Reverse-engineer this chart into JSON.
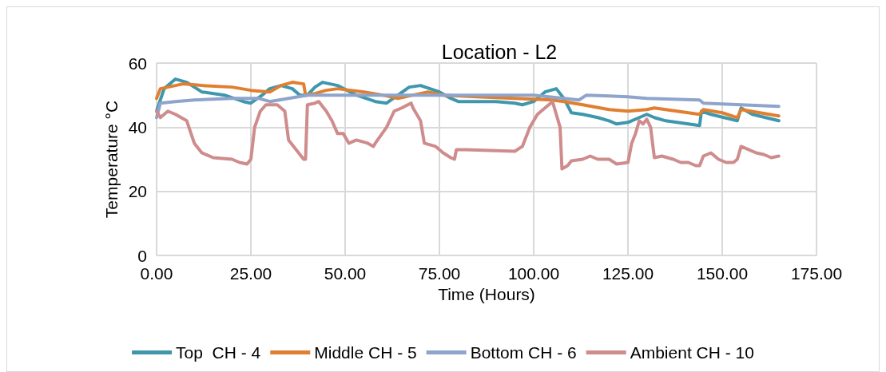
{
  "chart_data": {
    "type": "line",
    "title": "Location - L2",
    "xlabel": "Time (Hours)",
    "ylabel": "Temperature °C",
    "xlim": [
      0,
      175
    ],
    "xticks": [
      {
        "value": 0,
        "label": "0.00"
      },
      {
        "value": 25,
        "label": "25.00"
      },
      {
        "value": 50,
        "label": "50.00"
      },
      {
        "value": 75,
        "label": "75.00"
      },
      {
        "value": 100,
        "label": "100.00"
      },
      {
        "value": 125,
        "label": "125.00"
      },
      {
        "value": 150,
        "label": "150.00"
      },
      {
        "value": 175,
        "label": "175.00"
      }
    ],
    "ylim": [
      0,
      60
    ],
    "yticks": [
      0,
      20,
      40,
      60
    ],
    "grid": true,
    "legend": "bottom",
    "marker": "none",
    "line_style": "solid",
    "series": [
      {
        "name": "Top  CH - 4",
        "color": "#3f97ad",
        "x": [
          0,
          2,
          5,
          8,
          12,
          18,
          23,
          25,
          28,
          30,
          33,
          36,
          38,
          40,
          42,
          44,
          48,
          53,
          58,
          61,
          64,
          67,
          70,
          75,
          78,
          80,
          90,
          95,
          97,
          100,
          103,
          106,
          108,
          110,
          113,
          117,
          120,
          122,
          125,
          128,
          130,
          132,
          135,
          144,
          144.5,
          147,
          154,
          155,
          158,
          165
        ],
        "values": [
          45,
          52,
          55,
          54,
          51,
          50,
          48,
          47.5,
          50,
          52,
          53,
          52,
          50,
          50,
          52.5,
          54,
          53,
          50,
          48,
          47.5,
          50,
          52.5,
          53,
          51,
          49,
          48,
          48,
          47.5,
          47,
          48,
          51,
          52,
          49,
          44.5,
          44,
          43,
          42,
          41,
          41.5,
          43,
          44,
          43,
          42,
          40.5,
          45,
          44,
          42,
          46,
          44,
          42
        ]
      },
      {
        "name": "Middle CH - 5",
        "color": "#e07f2f",
        "x": [
          0,
          1,
          3,
          7,
          12,
          20,
          25,
          30,
          33,
          36,
          39,
          39.5,
          42,
          45,
          48,
          55,
          60,
          64,
          68,
          72,
          76,
          85,
          95,
          105,
          108,
          113,
          120,
          125,
          130,
          132,
          138,
          144,
          145,
          150,
          154,
          155,
          160,
          165
        ],
        "values": [
          49,
          52,
          52.5,
          53.5,
          53,
          52.5,
          51.5,
          51,
          53,
          54,
          53.5,
          50,
          50.5,
          51.5,
          52,
          51,
          50,
          49,
          50,
          51,
          50,
          49.5,
          49,
          48.5,
          48,
          47,
          45.5,
          45,
          45.5,
          46,
          45,
          44,
          45.5,
          44.5,
          43,
          45.5,
          44.5,
          43.5
        ]
      },
      {
        "name": "Bottom CH - 6",
        "color": "#8ea4cb",
        "x": [
          0,
          1,
          5,
          10,
          20,
          27,
          30,
          35,
          40,
          50,
          70,
          100,
          104,
          108,
          112,
          114,
          125,
          130,
          144,
          145,
          155,
          165
        ],
        "values": [
          43,
          47.5,
          48,
          48.5,
          49,
          49,
          48,
          49,
          50,
          50,
          50,
          50,
          49.5,
          49,
          48.5,
          50,
          49.5,
          49,
          48.5,
          47.5,
          47,
          46.5
        ]
      },
      {
        "name": "Ambient CH - 10",
        "color": "#cf8c8c",
        "x": [
          0,
          1,
          3,
          5,
          8,
          10,
          12,
          15,
          20,
          22,
          24,
          25,
          26,
          27.5,
          29,
          32,
          34,
          35,
          37,
          39,
          39.5,
          40,
          42,
          43,
          45,
          46.5,
          48,
          49.5,
          51,
          53,
          56,
          57.5,
          58,
          61,
          63,
          65,
          67.5,
          68,
          70,
          71,
          74,
          76,
          78,
          79,
          79.5,
          82,
          95,
          97,
          99,
          101,
          104,
          105,
          107,
          107.5,
          109,
          110,
          113,
          115,
          117,
          120,
          122,
          125,
          126,
          127,
          128,
          129,
          130,
          131,
          132,
          134,
          137,
          139,
          141,
          143,
          144,
          145,
          147,
          149,
          151,
          153,
          154,
          155,
          157,
          159,
          161,
          163,
          165
        ],
        "values": [
          45,
          43,
          45,
          44,
          42,
          35,
          32,
          30.5,
          30,
          29,
          28.5,
          30,
          40,
          45,
          47,
          47,
          45,
          36,
          33,
          30,
          30,
          47,
          47.5,
          48,
          45,
          42,
          38,
          38,
          35,
          36,
          35,
          34,
          35,
          40,
          45,
          46,
          47.5,
          46,
          42,
          35,
          34,
          32,
          30.5,
          30,
          33,
          33,
          32.5,
          34,
          40,
          44,
          47,
          48,
          40,
          27,
          28,
          29.5,
          30,
          31,
          30,
          30,
          28.5,
          29,
          35,
          38,
          42,
          41,
          42.5,
          40,
          30.5,
          31,
          30,
          29,
          29,
          28,
          28,
          31,
          32,
          30,
          29,
          29,
          30,
          34,
          33,
          32,
          31.5,
          30.5,
          31
        ]
      }
    ]
  }
}
